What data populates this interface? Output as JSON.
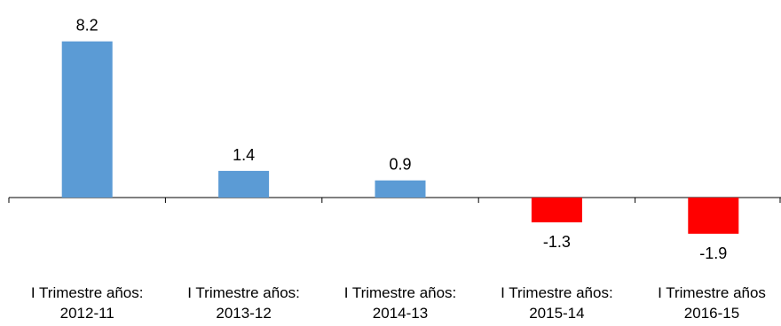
{
  "chart_data": {
    "type": "bar",
    "categories": [
      [
        "I Trimestre años:",
        "2012-11"
      ],
      [
        "I Trimestre años:",
        "2013-12"
      ],
      [
        "I Trimestre años:",
        "2014-13"
      ],
      [
        "I Trimestre años:",
        "2015-14"
      ],
      [
        "I Trimestre años",
        "2016-15"
      ]
    ],
    "values": [
      8.2,
      1.4,
      0.9,
      -1.3,
      -1.9
    ],
    "data_labels": [
      "8.2",
      "1.4",
      "0.9",
      "-1.3",
      "-1.9"
    ],
    "ylim": [
      -3.3,
      9.8
    ],
    "grid": false,
    "legend": "none",
    "colors": {
      "positive": "#5B9BD5",
      "negative": "#FF0000",
      "axis": "#000000"
    }
  }
}
